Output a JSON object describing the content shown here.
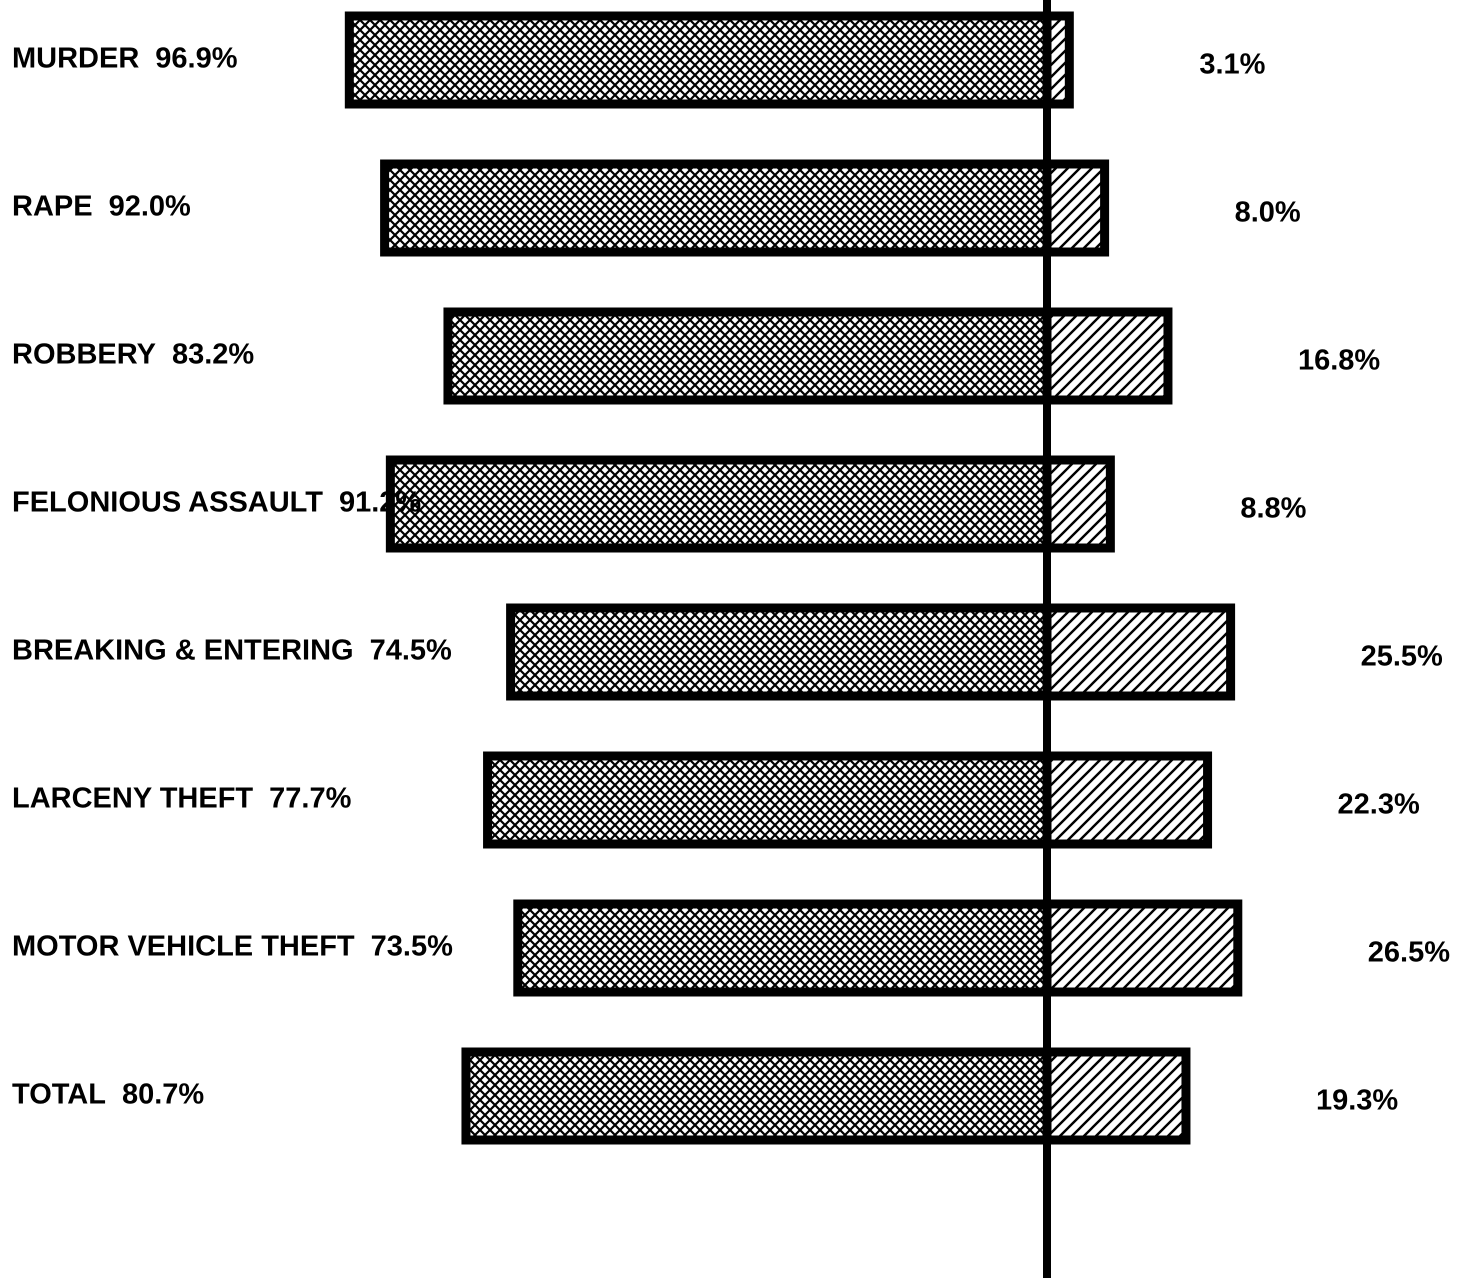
{
  "chart_data": {
    "type": "diverging_bar",
    "categories": [
      "MURDER",
      "RAPE",
      "ROBBERY",
      "FELONIOUS ASSAULT",
      "BREAKING & ENTERING",
      "LARCENY THEFT",
      "MOTOR VEHICLE THEFT",
      "TOTAL"
    ],
    "series": [
      {
        "color": "#000000",
        "side": "left",
        "values": [
          96.9,
          92.0,
          83.2,
          91.2,
          74.5,
          77.7,
          73.5,
          80.7
        ],
        "value_labels": [
          "96.9%",
          "92.0%",
          "83.2%",
          "91.2%",
          "74.5%",
          "77.7%",
          "73.5%",
          "80.7%"
        ]
      },
      {
        "color": "#000000",
        "side": "right",
        "values": [
          3.1,
          8.0,
          16.8,
          8.8,
          25.5,
          22.3,
          26.5,
          19.3
        ],
        "value_labels": [
          "3.1%",
          "8.0%",
          "16.8%",
          "8.8%",
          "25.5%",
          "22.3%",
          "26.5%",
          "19.3%"
        ]
      }
    ]
  }
}
